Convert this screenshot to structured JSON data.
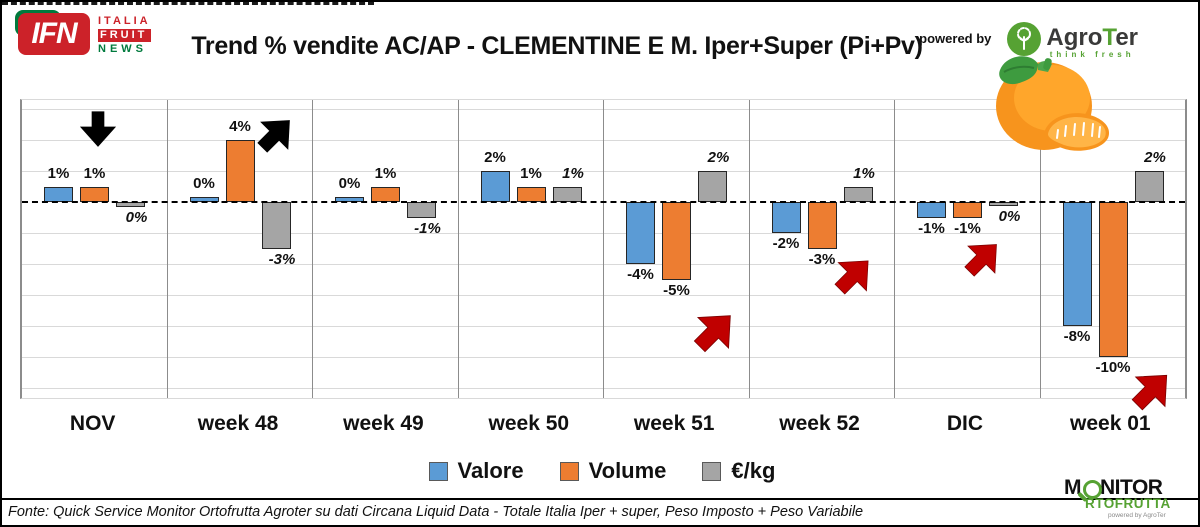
{
  "header": {
    "title": "Trend % vendite AC/AP - CLEMENTINE E M.  Iper+Super (Pi+Pv)",
    "powered_by": "powered by",
    "ifn_logo": {
      "acronym": "IFN",
      "line1": "ITALIA",
      "line2": "FRUIT",
      "line3": "NEWS"
    },
    "agroter_logo": {
      "name_pre": "Agro",
      "name_t": "T",
      "name_post": "er",
      "tagline": "think fresh"
    }
  },
  "chart_data": {
    "type": "bar",
    "title": "Trend % vendite AC/AP - CLEMENTINE E M.  Iper+Super (Pi+Pv)",
    "xlabel": "",
    "ylabel": "",
    "ylim": [
      -12.5,
      6.5
    ],
    "gridline_step_pct": 2,
    "grid": true,
    "zero_line_style": "dashed",
    "legend_position": "bottom",
    "categories": [
      "NOV",
      "week 48",
      "week 49",
      "week 50",
      "week 51",
      "week 52",
      "DIC",
      "week 01"
    ],
    "series": [
      {
        "name": "Valore",
        "color": "#5B9BD5",
        "values": [
          1,
          0,
          0,
          2,
          -4,
          -2,
          -1,
          -8
        ],
        "labels": [
          "1%",
          "0%",
          "0%",
          "2%",
          "-4%",
          "-2%",
          "-1%",
          "-8%"
        ],
        "draw": [
          1,
          0.35,
          0.35,
          2,
          -4,
          -2,
          -1,
          -8
        ]
      },
      {
        "name": "Volume",
        "color": "#ED7D31",
        "values": [
          1,
          4,
          1,
          1,
          -5,
          -3,
          -1,
          -10
        ],
        "labels": [
          "1%",
          "4%",
          "1%",
          "1%",
          "-5%",
          "-3%",
          "-1%",
          "-10%"
        ],
        "draw": [
          1,
          4,
          1,
          1,
          -5,
          -3,
          -1,
          -10
        ]
      },
      {
        "name": "€/kg",
        "color": "#A5A5A5",
        "values": [
          0,
          -3,
          -1,
          1,
          2,
          1,
          0,
          2
        ],
        "labels": [
          "0%",
          "-3%",
          "-1%",
          "1%",
          "2%",
          "1%",
          "0%",
          "2%"
        ],
        "draw": [
          -0.35,
          -3,
          -1,
          1,
          2,
          1,
          -0.25,
          2
        ]
      }
    ],
    "annotations": [
      {
        "category": "NOV",
        "symbol": "arrow-down",
        "color": "black"
      },
      {
        "category": "week 48",
        "symbol": "arrow-up-left",
        "color": "black"
      },
      {
        "category": "week 51",
        "symbol": "arrow-up-left",
        "color": "red"
      },
      {
        "category": "week 52",
        "symbol": "arrow-up-left",
        "color": "red"
      },
      {
        "category": "DIC",
        "symbol": "arrow-up-left",
        "color": "red"
      },
      {
        "category": "week 01",
        "symbol": "arrow-up-left",
        "color": "red"
      }
    ]
  },
  "legend": [
    {
      "label": "Valore",
      "color": "#5B9BD5"
    },
    {
      "label": "Volume",
      "color": "#ED7D31"
    },
    {
      "label": "€/kg",
      "color": "#A5A5A5"
    }
  ],
  "colors": {
    "arrow_red": "#C00000",
    "arrow_black": "#000000",
    "ifn_red": "#CC2229",
    "ifn_green": "#007A3D",
    "agroter_green": "#56A233"
  },
  "footer": {
    "fonte": "Fonte: Quick Service Monitor Ortofrutta Agroter su dati Circana Liquid Data - Totale Italia Iper + super, Peso Imposto + Peso Variabile"
  },
  "monitor_logo": {
    "line1_pre": "M",
    "line1_post": "NITOR",
    "line2": "RTOFRUTTA",
    "powered": "powered by AgroTer"
  }
}
